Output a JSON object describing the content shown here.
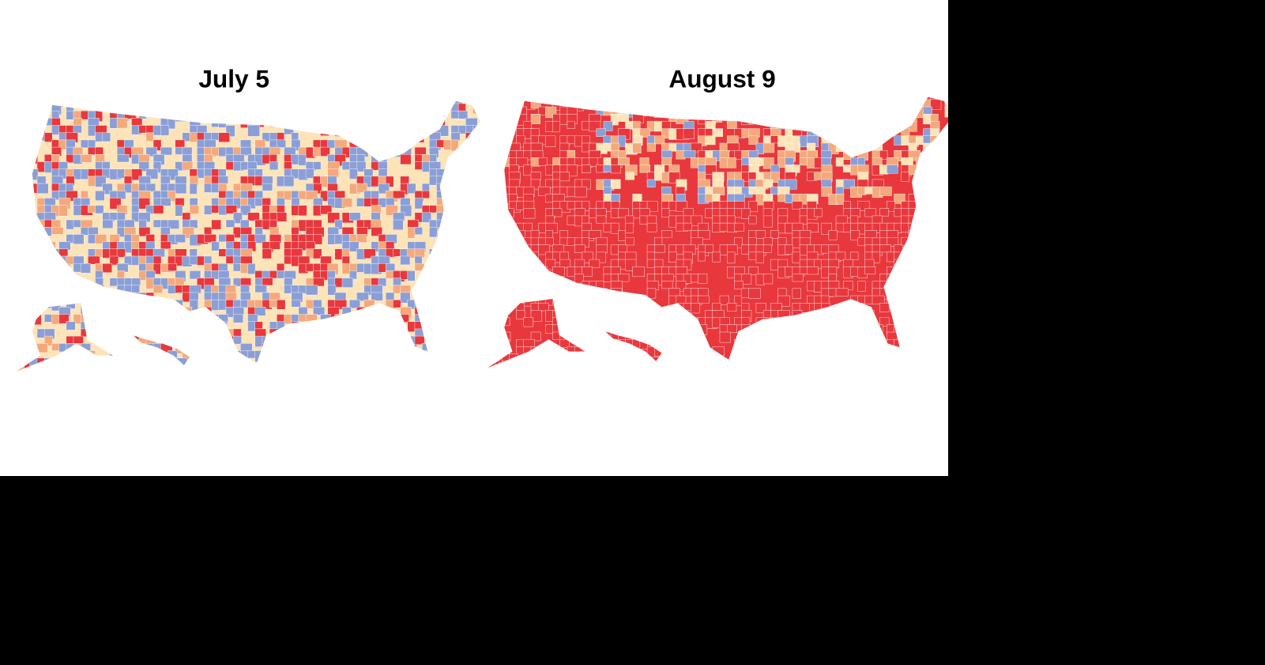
{
  "maps": [
    {
      "title": "July 5"
    },
    {
      "title": "August 9"
    }
  ]
}
